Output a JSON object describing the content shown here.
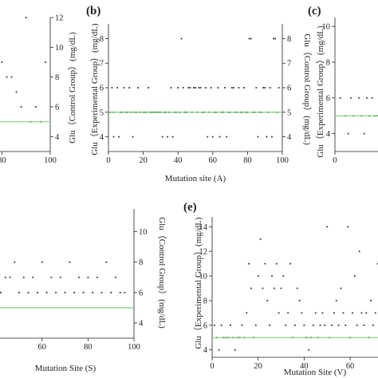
{
  "chart_data": [
    {
      "id": "panel-a",
      "type": "scatter",
      "panel_label": "",
      "xlabel": "",
      "ylabel": "",
      "right_ylabel": "Glu（Control Group）(mg/dL)",
      "xlim": [
        0,
        100
      ],
      "ylim": [
        3,
        12
      ],
      "xticks": [
        80,
        100
      ],
      "xtick_labels": [
        "80",
        "100"
      ],
      "yticks": [
        4,
        6,
        8,
        10,
        12
      ],
      "yticks_right": [
        4,
        6,
        8,
        10,
        12
      ],
      "reference_line_y": 5,
      "x": [
        1,
        3,
        5,
        6,
        8,
        10,
        11,
        12,
        14,
        16,
        18,
        20,
        22,
        24,
        26,
        28,
        30,
        32,
        34,
        36,
        38,
        40,
        42,
        44,
        46,
        48,
        50,
        52,
        54,
        56,
        58,
        60,
        62,
        64,
        66,
        68,
        70,
        72,
        74,
        76,
        78,
        80,
        82,
        84,
        86,
        88,
        90,
        92,
        94,
        96,
        98
      ],
      "y": [
        10,
        9,
        6,
        8,
        5,
        7,
        4,
        10,
        6,
        5,
        9,
        8,
        10,
        6,
        7,
        5,
        6,
        9,
        4,
        8,
        10,
        7,
        5,
        6,
        9,
        8,
        10,
        5,
        7,
        6,
        4,
        9,
        8,
        6,
        5,
        9,
        8,
        6,
        5,
        10,
        10,
        9,
        8,
        8,
        7,
        6,
        12,
        5,
        6,
        5,
        9
      ]
    },
    {
      "id": "panel-b",
      "type": "scatter",
      "panel_label": "(b)",
      "xlabel": "Mutation site (A)",
      "ylabel": "Glu（Experimental Group）(mg/dL)",
      "right_ylabel": "Glu（Control Group）(mg/dL)",
      "xlim": [
        0,
        100
      ],
      "ylim": [
        3.4,
        8.6
      ],
      "xticks": [
        0,
        20,
        40,
        60,
        80,
        100
      ],
      "xtick_labels": [
        "0",
        "20",
        "40",
        "60",
        "80",
        "100"
      ],
      "yticks": [
        4,
        5,
        6,
        7,
        8
      ],
      "yticks_right": [
        4,
        5,
        6,
        7,
        8
      ],
      "reference_line_y": 5,
      "x": [
        1,
        2,
        3,
        3,
        5,
        6,
        7,
        8,
        9,
        10,
        11,
        12,
        13,
        14,
        15,
        16,
        17,
        18,
        20,
        21,
        22,
        23,
        24,
        25,
        26,
        27,
        28,
        29,
        30,
        31,
        32,
        33,
        34,
        35,
        36,
        37,
        38,
        39,
        40,
        41,
        42,
        43,
        44,
        45,
        46,
        47,
        48,
        49,
        50,
        51,
        52,
        53,
        54,
        55,
        56,
        57,
        58,
        59,
        60,
        61,
        62,
        63,
        64,
        65,
        66,
        67,
        68,
        69,
        70,
        71,
        72,
        73,
        74,
        75,
        76,
        77,
        78,
        79,
        80,
        81,
        82,
        83,
        84,
        85,
        86,
        87,
        88,
        89,
        90,
        91,
        92,
        93,
        94,
        95,
        96,
        97,
        98
      ],
      "y": [
        5,
        6,
        4,
        5,
        6,
        4,
        5,
        5,
        6,
        5,
        5,
        6,
        5,
        4,
        5,
        5,
        6,
        5,
        5,
        5,
        5,
        6,
        5,
        5,
        5,
        5,
        5,
        5,
        5,
        4,
        5,
        5,
        4,
        5,
        6,
        4,
        5,
        5,
        6,
        5,
        8,
        6,
        5,
        5,
        6,
        6,
        5,
        6,
        6,
        5,
        6,
        6,
        5,
        5,
        6,
        4,
        5,
        6,
        4,
        5,
        5,
        6,
        4,
        5,
        5,
        6,
        4,
        5,
        5,
        6,
        6,
        5,
        5,
        6,
        5,
        5,
        6,
        5,
        5,
        8,
        8,
        5,
        5,
        6,
        4,
        5,
        5,
        6,
        6,
        4,
        5,
        6,
        4,
        8,
        8,
        5,
        6
      ]
    },
    {
      "id": "panel-c",
      "type": "scatter",
      "panel_label": "(c)",
      "xlabel": "",
      "ylabel": "Glu（Experimental Group）(mg/dL)",
      "right_ylabel": "",
      "xlim": [
        0,
        30
      ],
      "ylim": [
        3,
        10.5
      ],
      "xticks": [
        0,
        20
      ],
      "xtick_labels": [
        "0",
        "20"
      ],
      "yticks": [
        4,
        6,
        8,
        10
      ],
      "yticks_right": [],
      "reference_line_y": 5,
      "x": [
        2,
        4,
        5,
        6,
        7,
        9,
        10,
        11,
        12,
        13,
        14,
        15,
        16,
        17,
        18,
        19,
        20,
        22,
        24
      ],
      "y": [
        6,
        5,
        4,
        6,
        5,
        6,
        5,
        4,
        6,
        5,
        6,
        5,
        5,
        6,
        6,
        5,
        10,
        5,
        6
      ]
    },
    {
      "id": "panel-d",
      "type": "scatter",
      "panel_label": "",
      "xlabel": "Mutation Site (S)",
      "ylabel": "",
      "right_ylabel": "Glu（Control Group）(mg/dL)",
      "xlim": [
        0,
        100
      ],
      "ylim": [
        3,
        11.5
      ],
      "xticks": [
        0,
        20,
        40,
        60,
        80,
        100
      ],
      "xtick_labels": [
        "0",
        "20",
        "40",
        "60",
        "80",
        "100"
      ],
      "yticks": [
        4,
        6,
        8,
        10
      ],
      "yticks_right": [
        4,
        6,
        8,
        10
      ],
      "reference_line_y": 5,
      "x": [
        2,
        4,
        6,
        8,
        10,
        12,
        14,
        16,
        18,
        20,
        22,
        24,
        26,
        28,
        30,
        32,
        34,
        35,
        36,
        37,
        38,
        39,
        40,
        41,
        42,
        44,
        46,
        48,
        50,
        52,
        54,
        56,
        58,
        60,
        62,
        64,
        66,
        68,
        70,
        72,
        74,
        76,
        78,
        80,
        82,
        84,
        86,
        88,
        90,
        92,
        94,
        96
      ],
      "y": [
        11,
        10,
        6,
        11,
        9,
        10,
        7,
        8,
        11,
        6,
        10,
        7,
        8,
        6,
        9,
        10,
        7,
        11,
        6,
        8,
        7,
        7,
        6,
        7,
        6,
        7,
        7,
        8,
        6,
        7,
        6,
        7,
        6,
        8,
        6,
        7,
        6,
        7,
        6,
        8,
        6,
        7,
        6,
        7,
        6,
        7,
        6,
        8,
        6,
        7,
        6,
        6
      ]
    },
    {
      "id": "panel-e",
      "type": "scatter",
      "panel_label": "(e)",
      "xlabel": "Mutation Site (V)",
      "ylabel": "Glu（Experimental Group）(mg/dL)",
      "right_ylabel": "",
      "xlim": [
        0,
        95
      ],
      "ylim": [
        3.4,
        14.8
      ],
      "xticks": [
        0,
        20,
        40,
        60,
        80
      ],
      "xtick_labels": [
        "0",
        "20",
        "40",
        "60",
        "80"
      ],
      "yticks": [
        4,
        6,
        8,
        10,
        12,
        14
      ],
      "yticks_right": [],
      "reference_line_y": 5,
      "x": [
        1,
        2,
        3,
        4,
        5,
        6,
        7,
        8,
        9,
        10,
        11,
        12,
        13,
        14,
        15,
        16,
        17,
        18,
        19,
        20,
        21,
        22,
        23,
        24,
        25,
        26,
        27,
        28,
        29,
        30,
        31,
        32,
        33,
        34,
        35,
        36,
        37,
        38,
        39,
        40,
        41,
        42,
        43,
        44,
        45,
        46,
        47,
        48,
        49,
        50,
        51,
        52,
        53,
        54,
        55,
        56,
        57,
        58,
        59,
        60,
        61,
        62,
        63,
        64,
        65,
        66,
        67,
        68,
        69,
        70,
        71,
        72,
        73,
        74,
        75,
        76,
        77,
        78,
        79,
        80,
        81,
        82,
        83,
        84,
        85,
        86,
        87,
        88,
        89,
        90,
        91,
        92,
        93
      ],
      "y": [
        6,
        5,
        4,
        6,
        5,
        5,
        5,
        6,
        5,
        4,
        5,
        5,
        6,
        5,
        7,
        11,
        9,
        5,
        6,
        10,
        13,
        9,
        11,
        8,
        6,
        10,
        9,
        11,
        7,
        9,
        10,
        6,
        7,
        11,
        5,
        6,
        9,
        8,
        7,
        6,
        5,
        4,
        5,
        6,
        7,
        5,
        6,
        7,
        6,
        14,
        5,
        6,
        7,
        8,
        6,
        9,
        7,
        6,
        14,
        5,
        7,
        10,
        6,
        12,
        7,
        6,
        7,
        5,
        8,
        6,
        7,
        11,
        6,
        14,
        7,
        6,
        5,
        7,
        6,
        8,
        6,
        5,
        7,
        10,
        6,
        7,
        6,
        8,
        5,
        7,
        6,
        8,
        7
      ]
    }
  ]
}
